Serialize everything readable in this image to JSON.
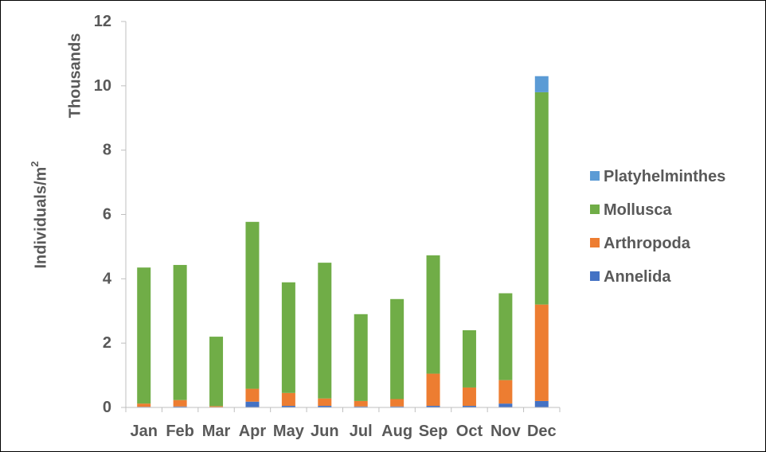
{
  "chart_data": {
    "type": "bar",
    "stacked": true,
    "ylabel": "Individuals/m²",
    "yunit_label": "Thousands",
    "ylim": [
      0,
      12
    ],
    "yticks": [
      0,
      2,
      4,
      6,
      8,
      10,
      12
    ],
    "grid": false,
    "legend_position": "right",
    "categories": [
      "Jan",
      "Feb",
      "Mar",
      "Apr",
      "May",
      "Jun",
      "Jul",
      "Aug",
      "Sep",
      "Oct",
      "Nov",
      "Dec"
    ],
    "series": [
      {
        "name": "Annelida",
        "color": "#4472c4",
        "values": [
          0.02,
          0.03,
          0.01,
          0.18,
          0.05,
          0.05,
          0.03,
          0.03,
          0.05,
          0.05,
          0.12,
          0.2
        ]
      },
      {
        "name": "Arthropoda",
        "color": "#ed7d31",
        "values": [
          0.1,
          0.2,
          0.03,
          0.4,
          0.4,
          0.23,
          0.17,
          0.23,
          1.0,
          0.57,
          0.73,
          3.0
        ]
      },
      {
        "name": "Mollusca",
        "color": "#70ad47",
        "values": [
          4.23,
          4.2,
          2.16,
          5.19,
          3.44,
          4.22,
          2.7,
          3.11,
          3.68,
          1.78,
          2.7,
          6.6
        ]
      },
      {
        "name": "Platyhelminthes",
        "color": "#5b9bd5",
        "values": [
          0,
          0,
          0,
          0,
          0,
          0,
          0,
          0,
          0,
          0,
          0,
          0.5
        ]
      }
    ]
  }
}
